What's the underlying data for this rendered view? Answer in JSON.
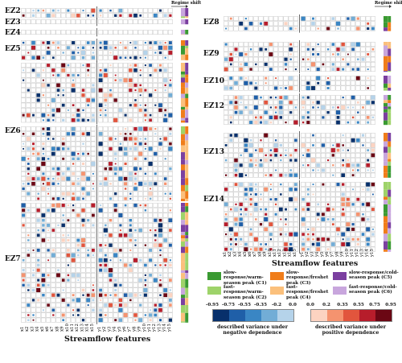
{
  "zones_left": [
    "EZ2",
    "EZ3",
    "EZ4",
    "EZ5",
    "EZ6",
    "EZ7"
  ],
  "zones_right": [
    "EZ8",
    "EZ9",
    "EZ10",
    "EZ12",
    "EZ13",
    "EZ14"
  ],
  "regime_shift_label": "Regime shift",
  "x_axis_title": "Streamflow features",
  "x_ticks": [
    "x1",
    "x2",
    "x3",
    "x4",
    "x5",
    "x6",
    "x7",
    "x8",
    "x9",
    "x10",
    "x11",
    "x12",
    "x13",
    "x14",
    "x15",
    "y1",
    "y2",
    "y3",
    "y4",
    "y5",
    "y6",
    "y7",
    "y8",
    "y9",
    "y10",
    "y11",
    "y12",
    "y13",
    "y14",
    "y15"
  ],
  "categories": [
    {
      "label": "slow-response/warm-season peak (C1)",
      "color": "#3a9a32"
    },
    {
      "label": "slow-response/freshet peak (C3)",
      "color": "#f07d1a"
    },
    {
      "label": "slow-response/cold-season peak (C5)",
      "color": "#7b3fa0"
    },
    {
      "label": "fast-response/warm-season peak (C2)",
      "color": "#9ed36a"
    },
    {
      "label": "fast-response/freshet peak (C4)",
      "color": "#fbc07c"
    },
    {
      "label": "fast-response/cold-season peak (C6)",
      "color": "#c8a6dd"
    }
  ],
  "negative_scale": {
    "ticks": [
      "-0.95",
      "-0.75",
      "-0.55",
      "-0.35",
      "-0.2",
      "0.0"
    ],
    "colors": [
      "#08306b",
      "#1f5fa8",
      "#3a86c4",
      "#72add6",
      "#b5d3ea"
    ],
    "caption": "described variance under negative dependence"
  },
  "positive_scale": {
    "ticks": [
      "0.0",
      "0.2",
      "0.35",
      "0.55",
      "0.75",
      "0.95"
    ],
    "colors": [
      "#fcd3c1",
      "#f5936f",
      "#e2553d",
      "#b71d2b",
      "#6b0714"
    ],
    "caption": "described variance under positive dependence"
  }
}
